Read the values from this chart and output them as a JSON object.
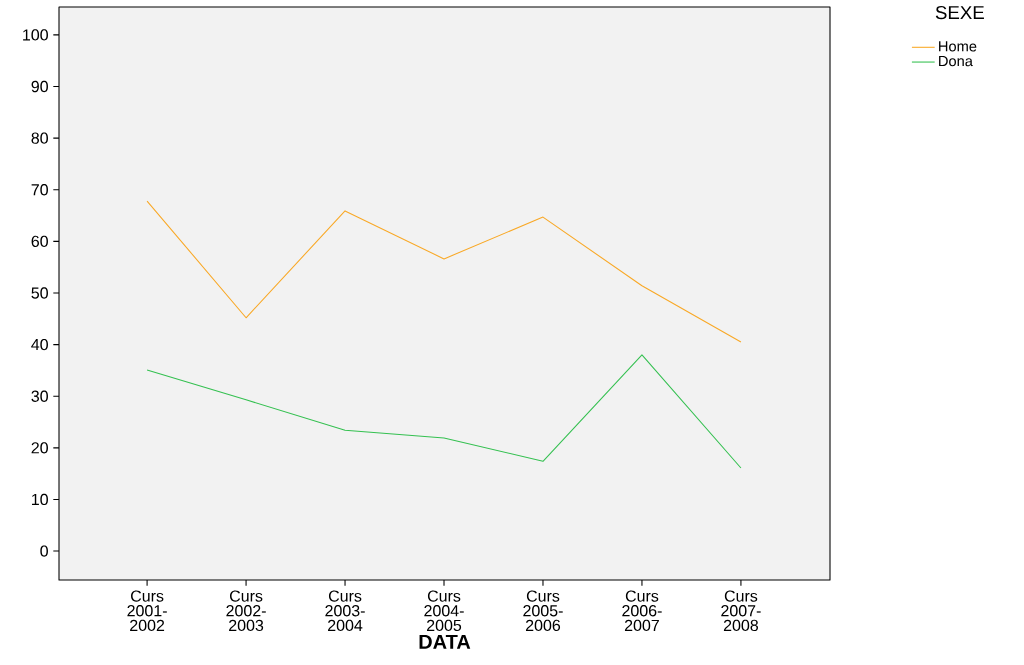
{
  "chart_data": {
    "type": "line",
    "xlabel": "DATA",
    "legend_title": "SEXE",
    "categories": [
      "Curs 2001-2002",
      "Curs 2002-2003",
      "Curs 2003-2004",
      "Curs 2004-2005",
      "Curs 2005-2006",
      "Curs 2006-2007",
      "Curs 2007-2008"
    ],
    "series": [
      {
        "name": "Home",
        "color": "#f9a825",
        "values": [
          67.8,
          45.2,
          65.9,
          56.6,
          64.7,
          51.4,
          40.5
        ]
      },
      {
        "name": "Dona",
        "color": "#34c050",
        "values": [
          35.1,
          29.3,
          23.4,
          21.9,
          17.4,
          38.0,
          16.1
        ]
      }
    ],
    "ylim": [
      -5.6,
      105.4
    ],
    "yticks": [
      0,
      10,
      20,
      30,
      40,
      50,
      60,
      70,
      80,
      90,
      100
    ],
    "grid": false,
    "legend": "top right",
    "marker": "none",
    "line_style": "solid"
  }
}
